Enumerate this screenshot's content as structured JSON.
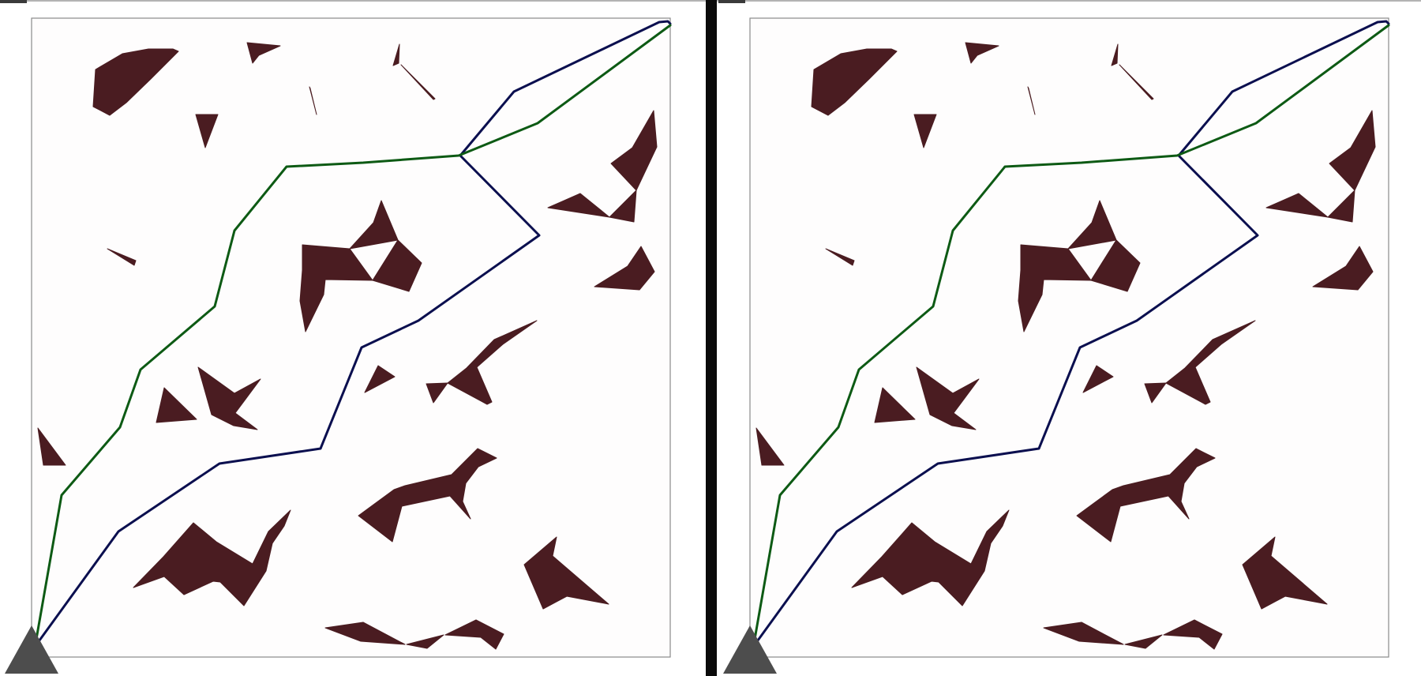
{
  "colors": {
    "obstacle": "#4a1c21",
    "path_a": "#0b0f4f",
    "path_b": "#0d5a14",
    "robot": "#4d4d4d",
    "divider": "#0a0a0a"
  },
  "icons": {
    "robot": "triangle-icon"
  },
  "panels": [
    {
      "name": "left-panel",
      "paths": [
        {
          "name": "path-a",
          "color_key": "path_a"
        },
        {
          "name": "path-b",
          "color_key": "path_b"
        }
      ]
    },
    {
      "name": "right-panel",
      "paths": [
        {
          "name": "path-a",
          "color_key": "path_a"
        },
        {
          "name": "path-b",
          "color_key": "path_b"
        }
      ]
    }
  ]
}
